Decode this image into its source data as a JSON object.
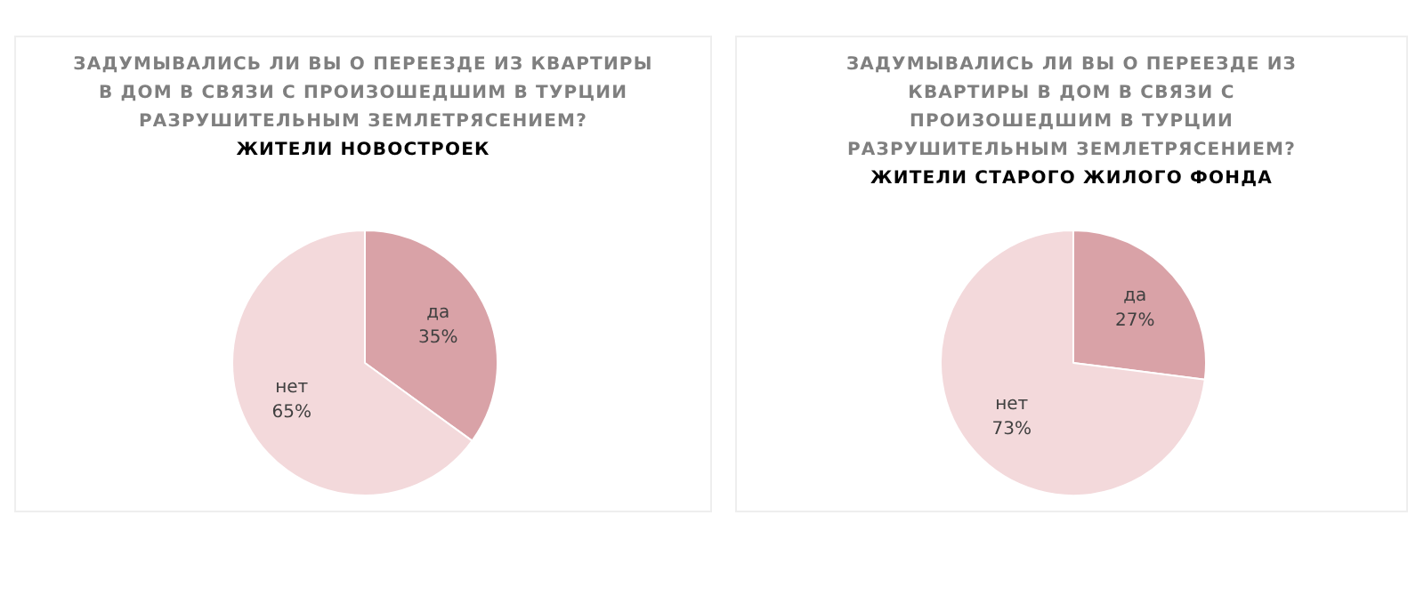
{
  "chart_data": [
    {
      "type": "pie",
      "title": "ЗАДУМЫВАЛИСЬ ЛИ ВЫ О ПЕРЕЕЗДЕ ИЗ КВАРТИРЫ В ДОМ В СВЯЗИ С ПРОИЗОШЕДШИМ В ТУРЦИИ РАЗРУШИТЕЛЬНЫМ ЗЕМЛЕТРЯСЕНИЕМ?",
      "subtitle": "ЖИТЕЛИ НОВОСТРОЕК",
      "categories": [
        "да",
        "нет"
      ],
      "values": [
        35,
        65
      ],
      "colors": [
        "#d9a2a7",
        "#f3d9db"
      ],
      "value_labels": [
        "35%",
        "65%"
      ]
    },
    {
      "type": "pie",
      "title": "ЗАДУМЫВАЛИСЬ ЛИ ВЫ О ПЕРЕЕЗДЕ ИЗ КВАРТИРЫ В ДОМ В СВЯЗИ С ПРОИЗОШЕДШИМ В ТУРЦИИ РАЗРУШИТЕЛЬНЫМ ЗЕМЛЕТРЯСЕНИЕМ?",
      "subtitle": "ЖИТЕЛИ СТАРОГО ЖИЛОГО ФОНДА",
      "categories": [
        "да",
        "нет"
      ],
      "values": [
        27,
        73
      ],
      "colors": [
        "#d9a2a7",
        "#f3d9db"
      ],
      "value_labels": [
        "27%",
        "73%"
      ]
    }
  ]
}
